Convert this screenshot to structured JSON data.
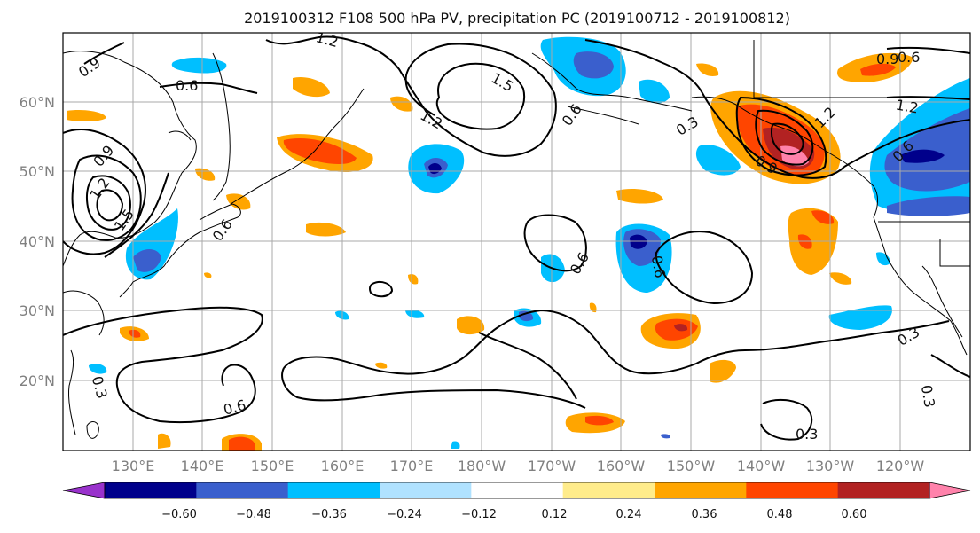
{
  "title": "2019100312 F108 500 hPa PV, precipitation PC (2019100712 - 2019100812)",
  "lat_labels": [
    "60°N",
    "50°N",
    "40°N",
    "30°N",
    "20°N"
  ],
  "lon_labels": [
    "130°E",
    "140°E",
    "150°E",
    "160°E",
    "170°E",
    "180°W",
    "170°W",
    "160°W",
    "150°W",
    "140°W",
    "130°W",
    "120°W"
  ],
  "contour_labels": [
    "0.9",
    "1.2",
    "0.6",
    "1.5",
    "1.2",
    "0.6",
    "1.2",
    "0.9",
    "1.5",
    "0.6",
    "0.3",
    "0.9",
    "1.2",
    "0.6",
    "1.2",
    "0.6",
    "0.9",
    "0.6",
    "0.6",
    "0.3",
    "0.6",
    "0.3",
    "0.3",
    "0.3"
  ],
  "colorbar": {
    "ticks": [
      "−0.60",
      "−0.48",
      "−0.36",
      "−0.24",
      "−0.12",
      "0.12",
      "0.24",
      "0.36",
      "0.48",
      "0.60"
    ],
    "colors": [
      "#9932cc",
      "#00008b",
      "#3a5fcd",
      "#00bfff",
      "#b0e2ff",
      "#ffffff",
      "#ffec8b",
      "#ffa500",
      "#ff4500",
      "#b22222",
      "#ff82ab"
    ]
  },
  "colors": {
    "frame": "#000000",
    "grid": "#a9a9a9",
    "coast": "#000000"
  }
}
